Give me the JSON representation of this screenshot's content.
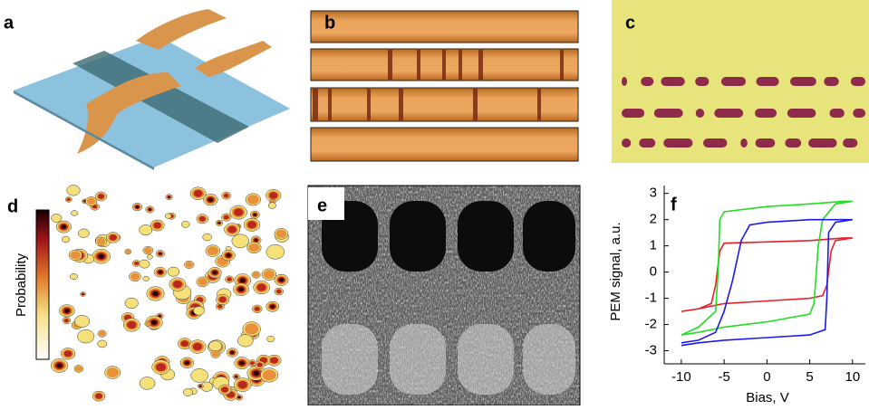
{
  "panels": [
    {
      "label": "a"
    },
    {
      "label": "b"
    },
    {
      "label": "c"
    },
    {
      "label": "d"
    },
    {
      "label": "e"
    },
    {
      "label": "f"
    }
  ],
  "colorbar_label": "Probability",
  "chart_data": {
    "type": "line",
    "x_label": "Bias, V",
    "y_label": "PEM signal, a.u.",
    "xlim": [
      -12,
      11.5
    ],
    "ylim": [
      -3.5,
      3.3
    ],
    "xticks": [
      -10,
      -5,
      0,
      5,
      10
    ],
    "yticks": [
      -3,
      -2,
      -1,
      0,
      1,
      2,
      3
    ],
    "series": [
      {
        "color": "#e8202a",
        "x": [
          -10,
          -8,
          -6.5,
          -6,
          -5.5,
          -5,
          0,
          5,
          9,
          10,
          10,
          8,
          7.5,
          7,
          6.5,
          5,
          0,
          -5,
          -8,
          -10
        ],
        "values": [
          -1.5,
          -1.4,
          -1.2,
          -0.5,
          0.8,
          1.1,
          1.15,
          1.2,
          1.3,
          1.3,
          1.3,
          1.2,
          0.8,
          -0.5,
          -0.9,
          -1.0,
          -1.1,
          -1.2,
          -1.4,
          -1.5
        ]
      },
      {
        "color": "#22dd22",
        "x": [
          -10,
          -8,
          -6,
          -5.7,
          -5.5,
          -5,
          0,
          5,
          9,
          10,
          10,
          8,
          6.5,
          6,
          5.5,
          5,
          0,
          -5,
          -8,
          -10
        ],
        "values": [
          -2.4,
          -2.1,
          -1.5,
          0,
          2.0,
          2.3,
          2.5,
          2.6,
          2.7,
          2.7,
          2.7,
          2.6,
          2.0,
          1.0,
          -1.2,
          -1.6,
          -1.9,
          -2.1,
          -2.3,
          -2.4
        ]
      },
      {
        "color": "#1a1aee",
        "x": [
          -10,
          -8,
          -6,
          -5,
          -4,
          -3,
          -2,
          0,
          5,
          10,
          10,
          8,
          7.2,
          7,
          6.8,
          5,
          0,
          -5,
          -8,
          -10
        ],
        "values": [
          -2.7,
          -2.6,
          -2.3,
          -1.5,
          -0.3,
          1.2,
          1.8,
          1.9,
          2.0,
          2.0,
          2.0,
          1.9,
          1.5,
          -1.0,
          -2.2,
          -2.4,
          -2.5,
          -2.6,
          -2.7,
          -2.8
        ]
      }
    ]
  }
}
